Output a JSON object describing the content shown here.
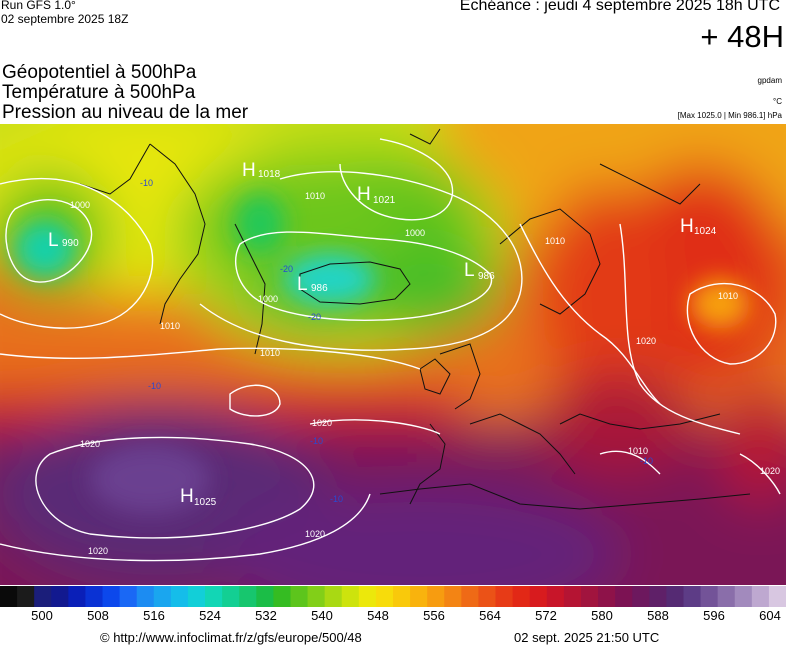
{
  "header": {
    "run": "Run GFS 1.0°",
    "run_date": "02 septembre 2025 18Z",
    "valid": "Echéance : jeudi 4 septembre 2025 18h UTC",
    "lead": "+ 48H"
  },
  "layers": [
    "Géopotentiel à 500hPa",
    "Température à 500hPa",
    "Pression au niveau de la mer"
  ],
  "units": {
    "geopotential": "gpdam",
    "temperature": "°C",
    "pressure_range": "[Max 1025.0 | Min 986.1] hPa"
  },
  "pressure_centers": [
    {
      "type": "H",
      "value": "1018"
    },
    {
      "type": "H",
      "value": "1021"
    },
    {
      "type": "L",
      "value": "990"
    },
    {
      "type": "L",
      "value": "986"
    },
    {
      "type": "L",
      "value": "986"
    },
    {
      "type": "H",
      "value": "1024"
    },
    {
      "type": "H",
      "value": "1025"
    }
  ],
  "isobar_labels": [
    "1000",
    "1010",
    "1000",
    "1010",
    "1010",
    "1020",
    "1020",
    "1020",
    "1020",
    "1010",
    "1010",
    "1010",
    "1020",
    "1020",
    "1000"
  ],
  "temperature_labels": [
    "-10",
    "-20",
    "-20",
    "-10",
    "-10",
    "-10",
    "-10"
  ],
  "colorscale": {
    "colors": [
      "#0a0a0a",
      "#1b1b1b",
      "#1b1e7a",
      "#12198f",
      "#0a1fb8",
      "#0a32d4",
      "#0c48ec",
      "#1a68f5",
      "#1c8cf2",
      "#1aa6ef",
      "#15bdea",
      "#12cfd8",
      "#12d6b5",
      "#13cf93",
      "#17c66e",
      "#1bbd47",
      "#35bc22",
      "#5dc51c",
      "#82cf18",
      "#a9d913",
      "#cde30d",
      "#ece80b",
      "#f7dc0b",
      "#f9c90b",
      "#f9b30d",
      "#f79c10",
      "#f38414",
      "#ef6a16",
      "#eb5217",
      "#e73b17",
      "#e22816",
      "#d81b1e",
      "#c81529",
      "#b51433",
      "#a1143e",
      "#8e1249",
      "#7c1253",
      "#6d185e",
      "#5f2068",
      "#552a73",
      "#5d3c86",
      "#735398",
      "#8a6eaa",
      "#a28abd",
      "#bea8d0",
      "#d8c7e1"
    ],
    "tick_labels": [
      "500",
      "508",
      "516",
      "524",
      "532",
      "540",
      "548",
      "556",
      "564",
      "572",
      "580",
      "588",
      "596",
      "604"
    ]
  },
  "footer": {
    "url": "© http://www.infoclimat.fr/z/gfs/europe/500/48",
    "generated": "02 sept. 2025 21:50 UTC"
  }
}
